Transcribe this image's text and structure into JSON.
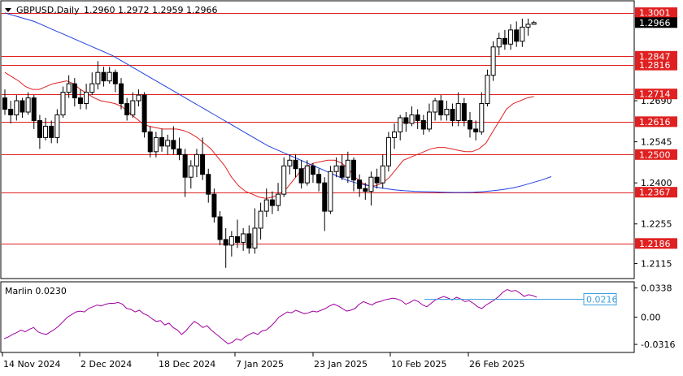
{
  "header": {
    "symbol": "GBPUSD,Daily",
    "ohlc": "1.2960 1.2972 1.2959 1.2966"
  },
  "indicator": {
    "label": "Marlin 0.0230",
    "cursor_value": "0.0216"
  },
  "colors": {
    "level_line": "#e02020",
    "ma_fast": "#e02020",
    "ma_slow": "#2040e0",
    "indicator_line": "#a000a0",
    "indicator_level": "#40a0e0",
    "current_price_bg": "#000000"
  },
  "chart_data": [
    {
      "type": "candlestick",
      "title": "GBPUSD,Daily",
      "x_tick_labels": [
        "14 Nov 2024",
        "2 Dec 2024",
        "18 Dec 2024",
        "7 Jan 2025",
        "23 Jan 2025",
        "10 Feb 2025",
        "26 Feb 2025"
      ],
      "y_tick_labels": [
        "1.2115",
        "1.2255",
        "1.2400",
        "1.2545",
        "1.2690"
      ],
      "ylim": [
        1.2065,
        1.304
      ],
      "current_price": "1.2966",
      "levels": [
        "1.3001",
        "1.2847",
        "1.2816",
        "1.2714",
        "1.2616",
        "1.2500",
        "1.2367",
        "1.2186"
      ],
      "candles": [
        [
          1.27,
          1.266,
          1.273,
          1.264
        ],
        [
          1.266,
          1.264,
          1.269,
          1.261
        ],
        [
          1.264,
          1.269,
          1.271,
          1.262
        ],
        [
          1.269,
          1.265,
          1.27,
          1.263
        ],
        [
          1.265,
          1.27,
          1.272,
          1.264
        ],
        [
          1.27,
          1.262,
          1.271,
          1.259
        ],
        [
          1.262,
          1.256,
          1.264,
          1.252
        ],
        [
          1.256,
          1.26,
          1.263,
          1.255
        ],
        [
          1.26,
          1.256,
          1.262,
          1.254
        ],
        [
          1.256,
          1.264,
          1.266,
          1.254
        ],
        [
          1.264,
          1.272,
          1.274,
          1.263
        ],
        [
          1.272,
          1.275,
          1.278,
          1.27
        ],
        [
          1.275,
          1.27,
          1.277,
          1.267
        ],
        [
          1.27,
          1.268,
          1.273,
          1.266
        ],
        [
          1.268,
          1.272,
          1.275,
          1.266
        ],
        [
          1.272,
          1.275,
          1.279,
          1.271
        ],
        [
          1.275,
          1.279,
          1.283,
          1.273
        ],
        [
          1.279,
          1.276,
          1.281,
          1.274
        ],
        [
          1.276,
          1.279,
          1.281,
          1.275
        ],
        [
          1.279,
          1.275,
          1.28,
          1.272
        ],
        [
          1.275,
          1.268,
          1.277,
          1.266
        ],
        [
          1.268,
          1.264,
          1.27,
          1.262
        ],
        [
          1.264,
          1.269,
          1.272,
          1.263
        ],
        [
          1.269,
          1.271,
          1.273,
          1.267
        ],
        [
          1.271,
          1.258,
          1.272,
          1.256
        ],
        [
          1.258,
          1.251,
          1.26,
          1.249
        ],
        [
          1.251,
          1.256,
          1.258,
          1.249
        ],
        [
          1.256,
          1.253,
          1.259,
          1.251
        ],
        [
          1.253,
          1.255,
          1.257,
          1.25
        ],
        [
          1.255,
          1.252,
          1.26,
          1.25
        ],
        [
          1.252,
          1.25,
          1.256,
          1.248
        ],
        [
          1.25,
          1.242,
          1.252,
          1.235
        ],
        [
          1.242,
          1.246,
          1.248,
          1.238
        ],
        [
          1.246,
          1.25,
          1.252,
          1.242
        ],
        [
          1.25,
          1.243,
          1.256,
          1.241
        ],
        [
          1.243,
          1.236,
          1.245,
          1.233
        ],
        [
          1.236,
          1.228,
          1.238,
          1.226
        ],
        [
          1.228,
          1.22,
          1.23,
          1.218
        ],
        [
          1.22,
          1.218,
          1.224,
          1.21
        ],
        [
          1.218,
          1.221,
          1.223,
          1.214
        ],
        [
          1.221,
          1.219,
          1.227,
          1.217
        ],
        [
          1.219,
          1.222,
          1.224,
          1.216
        ],
        [
          1.222,
          1.217,
          1.225,
          1.215
        ],
        [
          1.217,
          1.224,
          1.231,
          1.215
        ],
        [
          1.224,
          1.23,
          1.233,
          1.22
        ],
        [
          1.23,
          1.234,
          1.238,
          1.228
        ],
        [
          1.234,
          1.232,
          1.237,
          1.229
        ],
        [
          1.232,
          1.236,
          1.24,
          1.23
        ],
        [
          1.236,
          1.246,
          1.249,
          1.235
        ],
        [
          1.246,
          1.248,
          1.25,
          1.243
        ],
        [
          1.248,
          1.245,
          1.25,
          1.242
        ],
        [
          1.245,
          1.24,
          1.248,
          1.238
        ],
        [
          1.24,
          1.246,
          1.248,
          1.239
        ],
        [
          1.246,
          1.243,
          1.247,
          1.24
        ],
        [
          1.243,
          1.24,
          1.245,
          1.237
        ],
        [
          1.24,
          1.23,
          1.242,
          1.223
        ],
        [
          1.23,
          1.244,
          1.246,
          1.229
        ],
        [
          1.244,
          1.246,
          1.249,
          1.242
        ],
        [
          1.246,
          1.242,
          1.25,
          1.241
        ],
        [
          1.242,
          1.248,
          1.251,
          1.24
        ],
        [
          1.248,
          1.241,
          1.249,
          1.237
        ],
        [
          1.241,
          1.238,
          1.243,
          1.235
        ],
        [
          1.238,
          1.237,
          1.24,
          1.234
        ],
        [
          1.237,
          1.242,
          1.244,
          1.232
        ],
        [
          1.242,
          1.24,
          1.245,
          1.238
        ],
        [
          1.24,
          1.246,
          1.25,
          1.238
        ],
        [
          1.246,
          1.256,
          1.258,
          1.244
        ],
        [
          1.256,
          1.258,
          1.261,
          1.252
        ],
        [
          1.258,
          1.263,
          1.264,
          1.255
        ],
        [
          1.263,
          1.261,
          1.265,
          1.258
        ],
        [
          1.261,
          1.264,
          1.267,
          1.26
        ],
        [
          1.264,
          1.262,
          1.266,
          1.259
        ],
        [
          1.262,
          1.259,
          1.264,
          1.257
        ],
        [
          1.259,
          1.265,
          1.268,
          1.258
        ],
        [
          1.265,
          1.269,
          1.27,
          1.262
        ],
        [
          1.269,
          1.264,
          1.271,
          1.262
        ],
        [
          1.264,
          1.266,
          1.269,
          1.262
        ],
        [
          1.266,
          1.262,
          1.268,
          1.26
        ],
        [
          1.262,
          1.268,
          1.272,
          1.26
        ],
        [
          1.268,
          1.262,
          1.27,
          1.26
        ],
        [
          1.262,
          1.259,
          1.265,
          1.256
        ],
        [
          1.259,
          1.258,
          1.262,
          1.255
        ],
        [
          1.258,
          1.268,
          1.272,
          1.257
        ],
        [
          1.268,
          1.278,
          1.28,
          1.267
        ],
        [
          1.278,
          1.288,
          1.29,
          1.276
        ],
        [
          1.288,
          1.291,
          1.293,
          1.285
        ],
        [
          1.291,
          1.289,
          1.294,
          1.287
        ],
        [
          1.289,
          1.294,
          1.296,
          1.287
        ],
        [
          1.294,
          1.29,
          1.297,
          1.288
        ],
        [
          1.29,
          1.295,
          1.298,
          1.288
        ],
        [
          1.295,
          1.296,
          1.298,
          1.292
        ],
        [
          1.296,
          1.2966,
          1.2972,
          1.2959
        ]
      ],
      "series": [
        {
          "name": "",
          "values": [
            1.279,
            1.2775,
            1.276,
            1.274,
            1.273,
            1.273,
            1.274,
            1.275,
            1.2755,
            1.276,
            1.275,
            1.273,
            1.2715,
            1.27,
            1.269,
            1.2685,
            1.268,
            1.267,
            1.265,
            1.263,
            1.261,
            1.26,
            1.2595,
            1.259,
            1.259,
            1.259,
            1.2585,
            1.2575,
            1.256,
            1.254,
            1.252,
            1.249,
            1.246,
            1.242,
            1.239,
            1.237,
            1.236,
            1.235,
            1.2345,
            1.235,
            1.236,
            1.238,
            1.241,
            1.244,
            1.246,
            1.247,
            1.2475,
            1.248,
            1.248,
            1.247,
            1.245,
            1.242,
            1.24,
            1.239,
            1.239,
            1.24,
            1.242,
            1.245,
            1.248,
            1.249,
            1.25,
            1.251,
            1.252,
            1.2525,
            1.2525,
            1.252,
            1.2515,
            1.251,
            1.251,
            1.252,
            1.254,
            1.258,
            1.262,
            1.266,
            1.268,
            1.269,
            1.27,
            1.2705
          ]
        },
        {
          "name": "",
          "values": [
            1.3,
            1.299,
            1.298,
            1.297,
            1.2955,
            1.294,
            1.2925,
            1.291,
            1.2895,
            1.288,
            1.2865,
            1.285,
            1.283,
            1.281,
            1.279,
            1.277,
            1.275,
            1.273,
            1.271,
            1.269,
            1.267,
            1.265,
            1.263,
            1.261,
            1.259,
            1.257,
            1.255,
            1.253,
            1.2515,
            1.25,
            1.2485,
            1.247,
            1.2455,
            1.244,
            1.2425,
            1.241,
            1.24,
            1.2392,
            1.2385,
            1.238,
            1.2375,
            1.2372,
            1.237,
            1.2369,
            1.2368,
            1.2367,
            1.2366,
            1.2366,
            1.2367,
            1.2369,
            1.2372,
            1.2376,
            1.2382,
            1.239,
            1.24,
            1.241,
            1.2422
          ]
        }
      ]
    },
    {
      "type": "line",
      "title": "Marlin 0.0230",
      "y_tick_labels": [
        "0.0338",
        "0.00",
        "-0.0316"
      ],
      "ylim": [
        -0.04,
        0.04
      ],
      "level": 0.0216,
      "series": [
        {
          "name": "",
          "values": [
            -0.025,
            -0.023,
            -0.02,
            -0.018,
            -0.015,
            -0.017,
            -0.014,
            -0.012,
            -0.017,
            -0.019,
            -0.02,
            -0.017,
            -0.014,
            -0.01,
            -0.005,
            0.0,
            0.003,
            0.006,
            0.007,
            0.006,
            0.01,
            0.012,
            0.014,
            0.013,
            0.015,
            0.016,
            0.016,
            0.017,
            0.015,
            0.01,
            0.009,
            0.006,
            0.008,
            0.004,
            0.002,
            -0.002,
            -0.005,
            -0.004,
            -0.009,
            -0.007,
            -0.012,
            -0.015,
            -0.02,
            -0.016,
            -0.01,
            -0.005,
            -0.008,
            -0.012,
            -0.01,
            -0.015,
            -0.019,
            -0.023,
            -0.027,
            -0.031,
            -0.029,
            -0.025,
            -0.027,
            -0.023,
            -0.02,
            -0.018,
            -0.02,
            -0.016,
            -0.015,
            -0.011,
            -0.006,
            0.0,
            0.003,
            0.006,
            0.005,
            0.008,
            0.006,
            0.004,
            0.005,
            0.007,
            0.006,
            0.008,
            0.01,
            0.013,
            0.015,
            0.013,
            0.01,
            0.007,
            0.008,
            0.01,
            0.015,
            0.018,
            0.016,
            0.014,
            0.017,
            0.018,
            0.02,
            0.021,
            0.022,
            0.021,
            0.019,
            0.015,
            0.017,
            0.02,
            0.018,
            0.014,
            0.012,
            0.016,
            0.02,
            0.022,
            0.024,
            0.022,
            0.02,
            0.023,
            0.021,
            0.018,
            0.019,
            0.016,
            0.012,
            0.01,
            0.014,
            0.017,
            0.02,
            0.024,
            0.029,
            0.032,
            0.03,
            0.031,
            0.028,
            0.024,
            0.026,
            0.025,
            0.023
          ]
        }
      ]
    }
  ]
}
